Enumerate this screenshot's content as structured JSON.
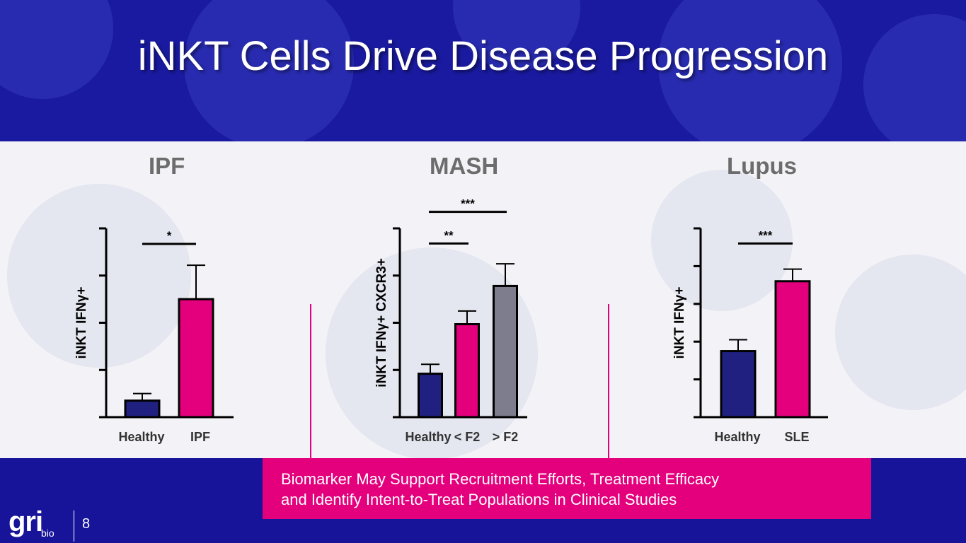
{
  "slide": {
    "title": "iNKT Cells Drive Disease Progression",
    "callout_line1": "Biomarker May Support Recruitment Efforts, Treatment Efficacy",
    "callout_line2": "and Identify Intent-to-Treat Populations in Clinical Studies",
    "logo_main": "gri",
    "logo_sub": "bio",
    "page_number": "8"
  },
  "colors": {
    "navy": "#202080",
    "magenta": "#e4007c",
    "gray": "#7d7d8e",
    "header_bg": "#1a1aa0",
    "panel_bg": "#f3f3f7"
  },
  "chart_data": [
    {
      "type": "bar",
      "title": "IPF",
      "ylabel": "iNKT IFNγ+",
      "categories": [
        "Healthy",
        "IPF"
      ],
      "values": [
        0.35,
        2.5
      ],
      "errors": [
        0.15,
        0.72
      ],
      "bar_colors": [
        "#202080",
        "#e4007c"
      ],
      "ylim": [
        0,
        4
      ],
      "yticks": [
        0,
        1,
        2,
        3,
        4
      ],
      "significance": [
        {
          "from": 0,
          "to": 1,
          "label": "*",
          "y": 3.67
        }
      ]
    },
    {
      "type": "bar",
      "title": "MASH",
      "ylabel": "iNKT IFNγ+ CXCR3+",
      "categories": [
        "Healthy",
        "< F2",
        "> F2"
      ],
      "values": [
        0.92,
        1.97,
        2.78
      ],
      "errors": [
        0.2,
        0.28,
        0.47
      ],
      "bar_colors": [
        "#202080",
        "#e4007c",
        "#7d7d8e"
      ],
      "ylim": [
        0,
        4
      ],
      "yticks": [
        0,
        1,
        2,
        3,
        4
      ],
      "significance": [
        {
          "from": 0,
          "to": 1,
          "label": "**",
          "y": 3.68
        },
        {
          "from": 0,
          "to": 2,
          "label": "***",
          "y": 4.35
        }
      ]
    },
    {
      "type": "bar",
      "title": "Lupus",
      "ylabel": "iNKT IFNγ+",
      "categories": [
        "Healthy",
        "SLE"
      ],
      "values": [
        1.75,
        3.6
      ],
      "errors": [
        0.3,
        0.32
      ],
      "bar_colors": [
        "#202080",
        "#e4007c"
      ],
      "ylim": [
        0,
        5
      ],
      "yticks": [
        0,
        1,
        2,
        3,
        4,
        5
      ],
      "significance": [
        {
          "from": 0,
          "to": 1,
          "label": "***",
          "y": 4.6
        }
      ]
    }
  ]
}
